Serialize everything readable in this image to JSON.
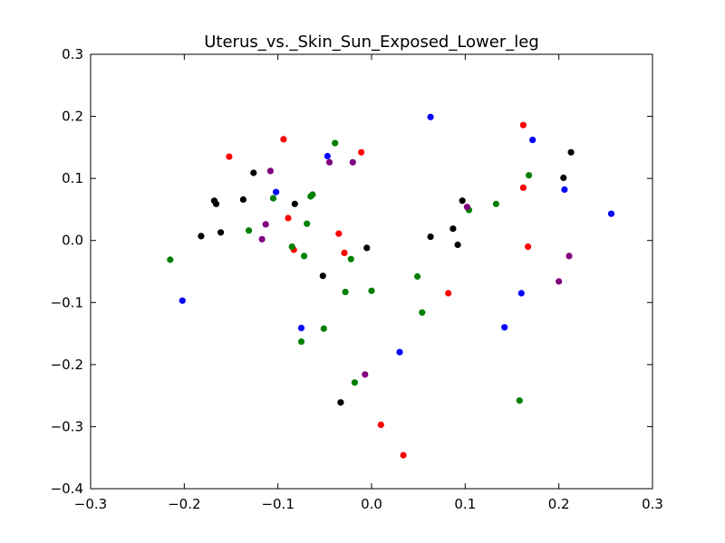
{
  "chart_data": {
    "type": "scatter",
    "title": "Uterus_vs._Skin_Sun_Exposed_Lower_leg",
    "xlabel": "",
    "ylabel": "",
    "xlim": [
      -0.3,
      0.3
    ],
    "ylim": [
      -0.4,
      0.3
    ],
    "xticks": [
      -0.3,
      -0.2,
      -0.1,
      0.0,
      0.1,
      0.2,
      0.3
    ],
    "yticks": [
      -0.4,
      -0.3,
      -0.2,
      -0.1,
      0.0,
      0.1,
      0.2,
      0.3
    ],
    "xtick_labels": [
      "−0.3",
      "−0.2",
      "−0.1",
      "0.0",
      "0.1",
      "0.2",
      "0.3"
    ],
    "ytick_labels": [
      "−0.4",
      "−0.3",
      "−0.2",
      "−0.1",
      "0.0",
      "0.1",
      "0.2",
      "0.3"
    ],
    "grid": false,
    "series": [
      {
        "color": "#0000ff",
        "points": [
          [
            -0.202,
            -0.097
          ],
          [
            -0.102,
            0.078
          ],
          [
            -0.075,
            -0.141
          ],
          [
            -0.047,
            0.136
          ],
          [
            0.03,
            -0.18
          ],
          [
            0.063,
            0.199
          ],
          [
            0.142,
            -0.14
          ],
          [
            0.16,
            -0.085
          ],
          [
            0.172,
            0.162
          ],
          [
            0.206,
            0.082
          ],
          [
            0.256,
            0.043
          ]
        ]
      },
      {
        "color": "#ff0000",
        "points": [
          [
            -0.152,
            0.135
          ],
          [
            -0.094,
            0.163
          ],
          [
            -0.089,
            0.036
          ],
          [
            -0.083,
            -0.015
          ],
          [
            -0.035,
            0.011
          ],
          [
            -0.029,
            -0.02
          ],
          [
            -0.011,
            0.142
          ],
          [
            0.01,
            -0.297
          ],
          [
            0.034,
            -0.346
          ],
          [
            0.082,
            -0.085
          ],
          [
            0.162,
            0.186
          ],
          [
            0.162,
            0.085
          ],
          [
            0.167,
            -0.01
          ]
        ]
      },
      {
        "color": "#008000",
        "points": [
          [
            -0.215,
            -0.031
          ],
          [
            -0.131,
            0.016
          ],
          [
            -0.105,
            0.068
          ],
          [
            -0.085,
            -0.01
          ],
          [
            -0.072,
            -0.025
          ],
          [
            -0.069,
            0.027
          ],
          [
            -0.065,
            0.071
          ],
          [
            -0.063,
            0.074
          ],
          [
            -0.075,
            -0.163
          ],
          [
            -0.051,
            -0.142
          ],
          [
            -0.039,
            0.157
          ],
          [
            -0.028,
            -0.083
          ],
          [
            -0.022,
            -0.03
          ],
          [
            -0.018,
            -0.229
          ],
          [
            0.0,
            -0.081
          ],
          [
            0.049,
            -0.058
          ],
          [
            0.054,
            -0.116
          ],
          [
            0.104,
            0.049
          ],
          [
            0.133,
            0.059
          ],
          [
            0.158,
            -0.258
          ],
          [
            0.168,
            0.105
          ]
        ]
      },
      {
        "color": "#000000",
        "points": [
          [
            -0.182,
            0.007
          ],
          [
            -0.168,
            0.064
          ],
          [
            -0.166,
            0.059
          ],
          [
            -0.161,
            0.013
          ],
          [
            -0.137,
            0.066
          ],
          [
            -0.126,
            0.109
          ],
          [
            -0.082,
            0.059
          ],
          [
            -0.052,
            -0.057
          ],
          [
            -0.033,
            -0.261
          ],
          [
            -0.005,
            -0.012
          ],
          [
            0.063,
            0.006
          ],
          [
            0.087,
            0.019
          ],
          [
            0.092,
            -0.007
          ],
          [
            0.097,
            0.064
          ],
          [
            0.205,
            0.101
          ],
          [
            0.213,
            0.142
          ]
        ]
      },
      {
        "color": "#800080",
        "points": [
          [
            -0.117,
            0.002
          ],
          [
            -0.113,
            0.026
          ],
          [
            -0.108,
            0.112
          ],
          [
            -0.045,
            0.126
          ],
          [
            -0.02,
            0.126
          ],
          [
            -0.007,
            -0.216
          ],
          [
            0.102,
            0.054
          ],
          [
            0.2,
            -0.066
          ],
          [
            0.211,
            -0.025
          ]
        ]
      }
    ]
  }
}
